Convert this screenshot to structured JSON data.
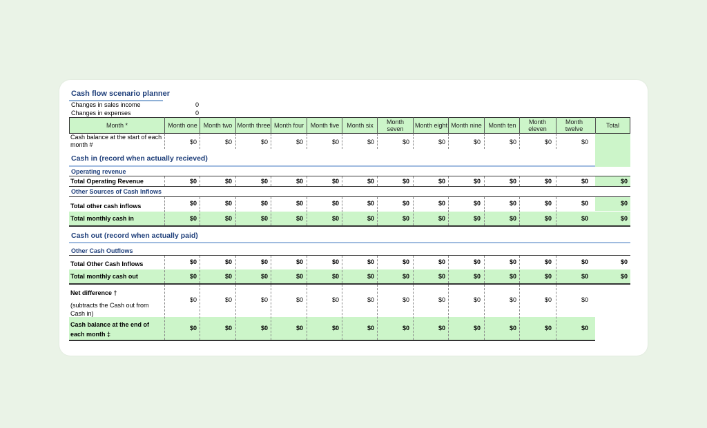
{
  "title": "Cash flow scenario planner",
  "changes": [
    {
      "label": "Changes in sales income",
      "value": "0"
    },
    {
      "label": "Changes in expenses",
      "value": "0"
    }
  ],
  "header": {
    "month_label": "Month *",
    "months": [
      "Month one",
      "Month two",
      "Month three",
      "Month four",
      "Month five",
      "Month six",
      "Month seven",
      "Month eight",
      "Month nine",
      "Month ten",
      "Month eleven",
      "Month twelve"
    ],
    "total": "Total"
  },
  "rows": {
    "start_balance": {
      "label": "Cash balance at the start of each month #",
      "values": [
        "$0",
        "$0",
        "$0",
        "$0",
        "$0",
        "$0",
        "$0",
        "$0",
        "$0",
        "$0",
        "$0",
        "$0"
      ]
    },
    "cash_in_heading": "Cash in (record when actually recieved)",
    "operating_revenue": "Operating revenue",
    "total_operating_revenue": {
      "label": "Total Operating Revenue",
      "values": [
        "$0",
        "$0",
        "$0",
        "$0",
        "$0",
        "$0",
        "$0",
        "$0",
        "$0",
        "$0",
        "$0",
        "$0"
      ],
      "total": "$0"
    },
    "other_sources": "Other Sources of Cash Inflows",
    "total_other_inflows": {
      "label": "Total other cash inflows",
      "values": [
        "$0",
        "$0",
        "$0",
        "$0",
        "$0",
        "$0",
        "$0",
        "$0",
        "$0",
        "$0",
        "$0",
        "$0"
      ],
      "total": "$0"
    },
    "total_monthly_in": {
      "label": "Total monthly cash in",
      "values": [
        "$0",
        "$0",
        "$0",
        "$0",
        "$0",
        "$0",
        "$0",
        "$0",
        "$0",
        "$0",
        "$0",
        "$0"
      ],
      "total": "$0"
    },
    "cash_out_heading": "Cash out (record  when actually paid)",
    "other_outflows": "Other Cash Outflows",
    "total_other_out": {
      "label": "Total Other Cash Inflows",
      "values": [
        "$0",
        "$0",
        "$0",
        "$0",
        "$0",
        "$0",
        "$0",
        "$0",
        "$0",
        "$0",
        "$0",
        "$0"
      ],
      "total": "$0"
    },
    "total_monthly_out": {
      "label": "Total monthly cash out",
      "values": [
        "$0",
        "$0",
        "$0",
        "$0",
        "$0",
        "$0",
        "$0",
        "$0",
        "$0",
        "$0",
        "$0",
        "$0"
      ],
      "total": "$0"
    },
    "net_difference": {
      "label": "Net difference †",
      "note": "(subtracts the Cash out from Cash in)",
      "values": [
        "$0",
        "$0",
        "$0",
        "$0",
        "$0",
        "$0",
        "$0",
        "$0",
        "$0",
        "$0",
        "$0",
        "$0"
      ]
    },
    "end_balance": {
      "label": "Cash balance at the end of each month ‡",
      "values": [
        "$0",
        "$0",
        "$0",
        "$0",
        "$0",
        "$0",
        "$0",
        "$0",
        "$0",
        "$0",
        "$0",
        "$0"
      ]
    }
  },
  "colors": {
    "green": "#ccf5c9",
    "heading_blue": "#1f3f7a",
    "background": "#eaf3e7"
  }
}
